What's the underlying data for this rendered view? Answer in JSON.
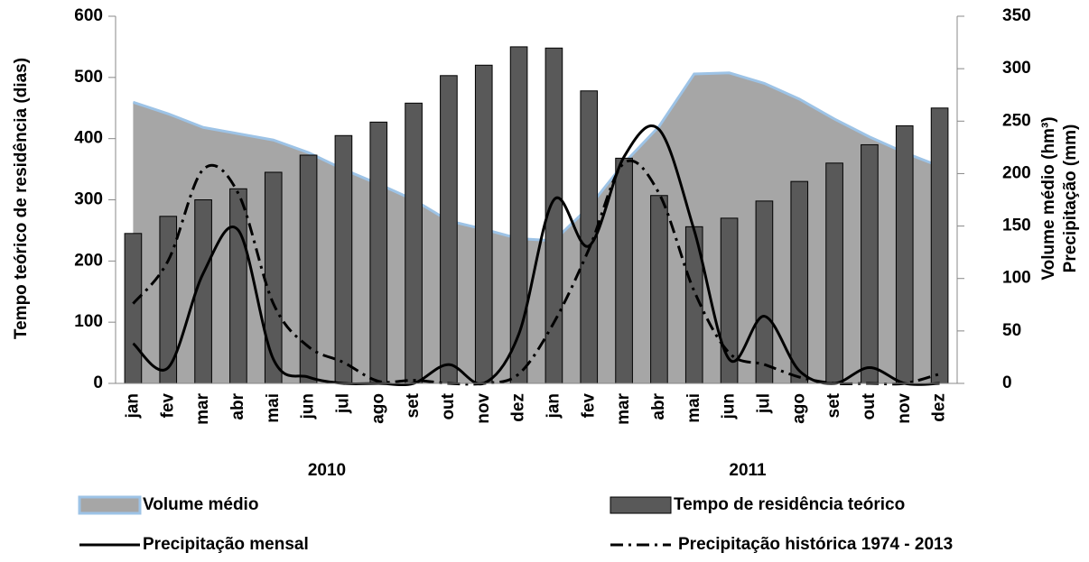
{
  "chart_data": {
    "type": "combo",
    "y_label": "Tempo teórico de residência (dias)",
    "y2_label": [
      "Volume médio (hm³)",
      "Precipitação (mm)"
    ],
    "categories": [
      "jan",
      "fev",
      "mar",
      "abr",
      "mai",
      "jun",
      "jul",
      "ago",
      "set",
      "out",
      "nov",
      "dez",
      "jan",
      "fev",
      "mar",
      "abr",
      "mai",
      "jun",
      "jul",
      "ago",
      "set",
      "out",
      "nov",
      "dez"
    ],
    "x_groups": [
      "2010",
      "2011"
    ],
    "ylim": [
      0,
      600
    ],
    "yticks": [
      0,
      100,
      200,
      300,
      400,
      500,
      600
    ],
    "y2lim": [
      0,
      350
    ],
    "y2ticks": [
      0,
      50,
      100,
      150,
      200,
      250,
      300,
      350
    ],
    "series": [
      {
        "name": "Volume médio",
        "kind": "area",
        "axis": "y2",
        "color": "#a6a6a6",
        "edge_color": "#9dc3e6",
        "values": [
          268,
          257,
          244,
          238,
          232,
          220,
          204,
          190,
          175,
          155,
          147,
          138,
          136,
          168,
          210,
          245,
          295,
          296,
          286,
          271,
          252,
          235,
          220,
          207
        ]
      },
      {
        "name": "Tempo de residência teórico",
        "kind": "bar",
        "color": "#595959",
        "values": [
          245,
          273,
          300,
          318,
          345,
          373,
          405,
          427,
          458,
          503,
          520,
          550,
          548,
          478,
          368,
          307,
          256,
          270,
          298,
          330,
          360,
          390,
          421,
          450
        ]
      },
      {
        "name": "Precipitação mensal",
        "kind": "line",
        "axis": "y2",
        "color": "#000000",
        "dash": "none",
        "values": [
          38,
          15,
          105,
          146,
          23,
          6,
          0,
          0,
          0,
          18,
          0,
          47,
          175,
          131,
          216,
          242,
          146,
          23,
          64,
          12,
          0,
          15,
          0,
          0
        ]
      },
      {
        "name": "Precipitação histórica 1974 - 2013",
        "kind": "line",
        "axis": "y2",
        "color": "#000000",
        "dash": "14 6 3 6",
        "values": [
          76,
          117,
          204,
          181,
          76,
          35,
          20,
          2,
          3,
          0,
          0,
          9,
          58,
          128,
          210,
          181,
          88,
          29,
          18,
          6,
          0,
          0,
          0,
          9
        ]
      }
    ]
  }
}
